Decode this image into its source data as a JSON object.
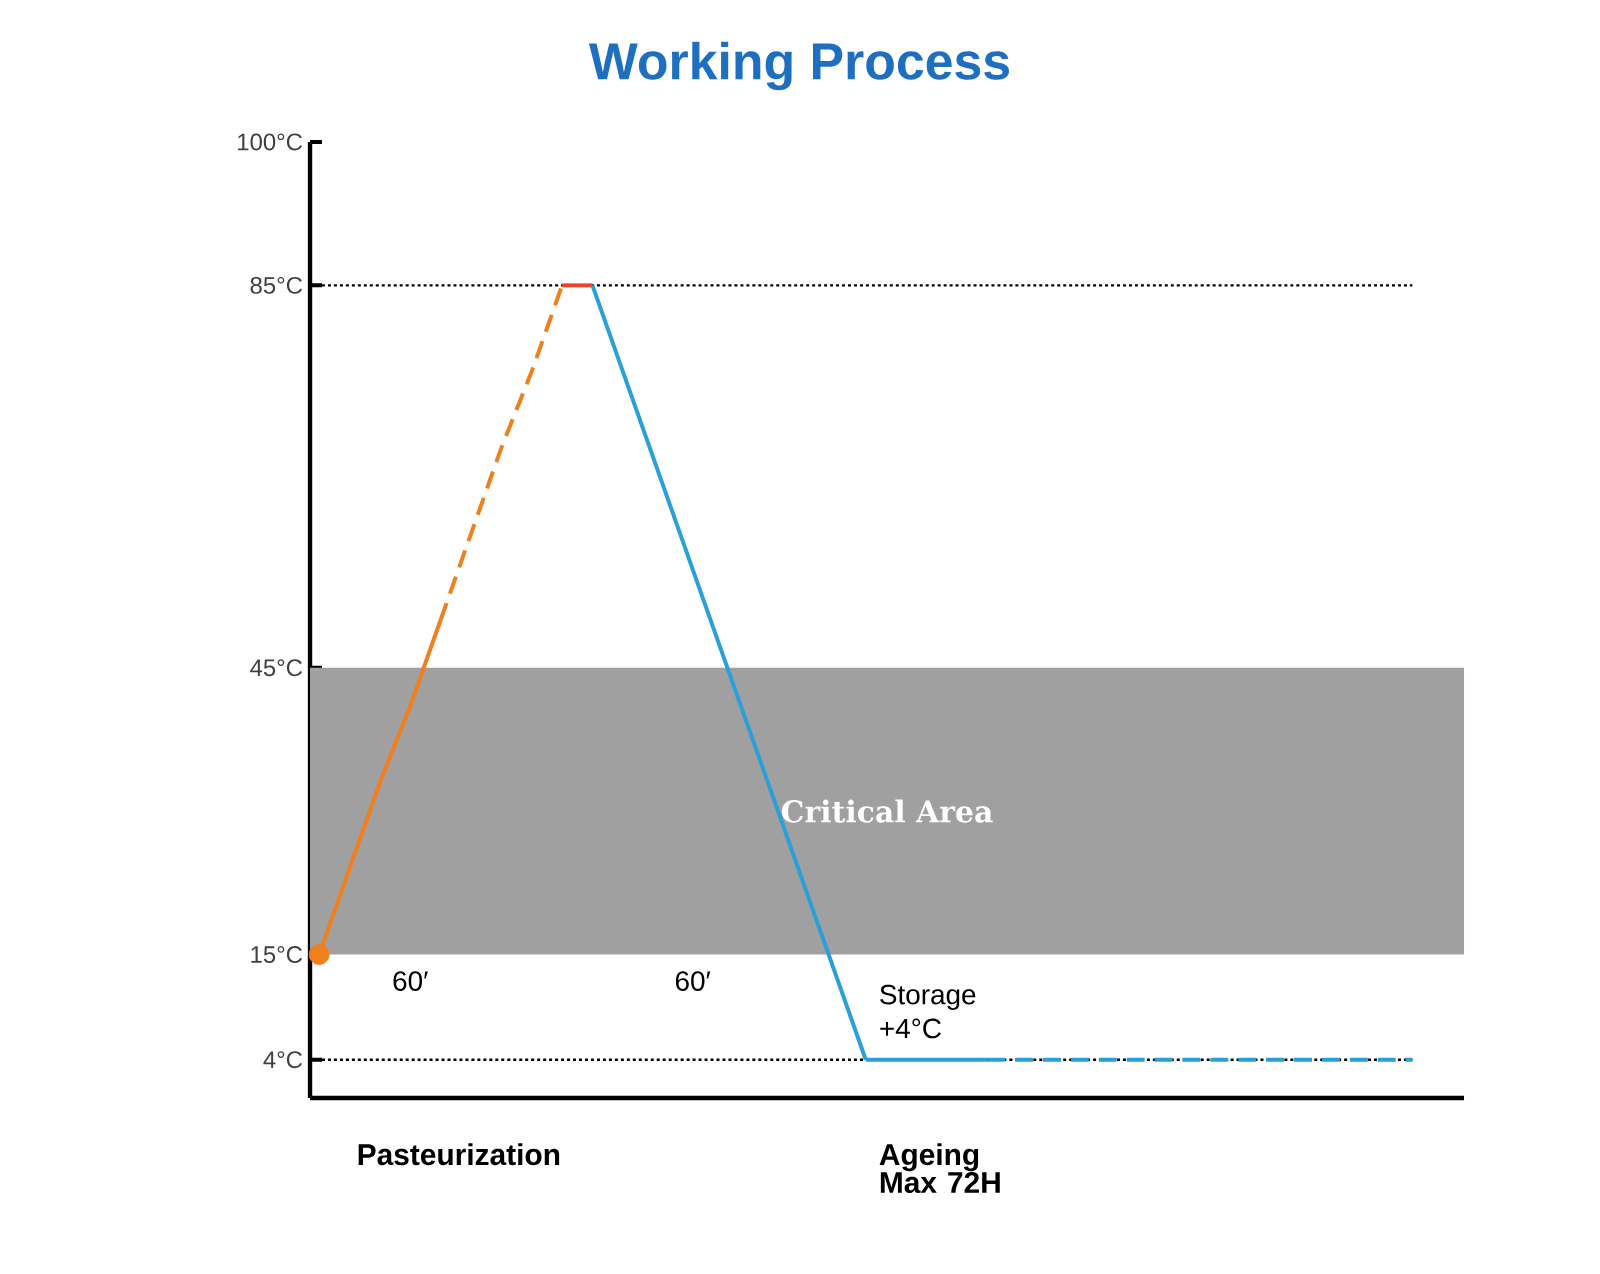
{
  "chart_data": {
    "type": "line",
    "title": "Working Process",
    "categories": [
      null,
      null,
      null,
      null,
      null,
      null,
      null,
      null,
      null,
      null,
      null,
      null,
      null,
      null,
      null,
      null,
      null,
      null,
      null,
      null,
      null,
      null,
      null,
      null,
      null,
      null,
      null,
      null,
      null,
      null,
      null,
      null,
      null,
      null,
      null,
      null,
      null
    ],
    "series": [
      {
        "color": "#f07f1e",
        "line_style": "solid",
        "values": [
          15,
          24,
          33,
          41,
          50,
          null,
          null,
          null,
          null,
          null,
          null,
          null,
          null,
          null,
          null,
          null,
          null,
          null,
          null,
          null,
          null,
          null,
          null,
          null,
          null,
          null,
          null,
          null,
          null,
          null,
          null,
          null,
          null,
          null,
          null,
          null,
          null
        ]
      },
      {
        "color": "#f07f1e",
        "line_style": "dashed",
        "values": [
          null,
          null,
          null,
          null,
          50,
          59,
          68,
          76,
          85,
          null,
          null,
          null,
          null,
          null,
          null,
          null,
          null,
          null,
          null,
          null,
          null,
          null,
          null,
          null,
          null,
          null,
          null,
          null,
          null,
          null,
          null,
          null,
          null,
          null,
          null,
          null,
          null
        ]
      },
      {
        "color": "#e8452a",
        "line_style": "solid",
        "values": [
          null,
          null,
          null,
          null,
          null,
          null,
          null,
          null,
          85,
          85,
          null,
          null,
          null,
          null,
          null,
          null,
          null,
          null,
          null,
          null,
          null,
          null,
          null,
          null,
          null,
          null,
          null,
          null,
          null,
          null,
          null,
          null,
          null,
          null,
          null,
          null,
          null
        ]
      },
      {
        "color": "#2aa0d8",
        "line_style": "solid",
        "values": [
          null,
          null,
          null,
          null,
          null,
          null,
          null,
          null,
          null,
          85,
          76,
          67,
          58,
          49,
          40,
          31,
          22,
          13,
          4,
          null,
          null,
          null,
          null,
          null,
          null,
          null,
          null,
          null,
          null,
          null,
          null,
          null,
          null,
          null,
          null,
          null,
          null
        ]
      },
      {
        "color": "#2aa0d8",
        "line_style": "solid",
        "values": [
          null,
          null,
          null,
          null,
          null,
          null,
          null,
          null,
          null,
          null,
          null,
          null,
          null,
          null,
          null,
          null,
          null,
          null,
          4,
          4,
          4,
          4,
          4,
          null,
          null,
          null,
          null,
          null,
          null,
          null,
          null,
          null,
          null,
          null,
          null,
          null,
          null
        ]
      },
      {
        "color": "#2aa0d8",
        "line_style": "dashed",
        "values": [
          null,
          null,
          null,
          null,
          null,
          null,
          null,
          null,
          null,
          null,
          null,
          null,
          null,
          null,
          null,
          null,
          null,
          null,
          null,
          null,
          null,
          null,
          4,
          4,
          4,
          4,
          4,
          4,
          4,
          4,
          4,
          4,
          4,
          4,
          4,
          4,
          4
        ]
      },
      {
        "type": "scatter",
        "color": "#f07f1e",
        "marker": "circle",
        "values": [
          15,
          null,
          null,
          null,
          null,
          null,
          null,
          null,
          null,
          null,
          null,
          null,
          null,
          null,
          null,
          null,
          null,
          null,
          null,
          null,
          null,
          null,
          null,
          null,
          null,
          null,
          null,
          null,
          null,
          null,
          null,
          null,
          null,
          null,
          null,
          null,
          null
        ]
      }
    ],
    "ylim": [
      0,
      100
    ],
    "yticks": [
      {
        "value": 4,
        "label": "4°C"
      },
      {
        "value": 15,
        "label": "15°C"
      },
      {
        "value": 45,
        "label": "45°C"
      },
      {
        "value": 85,
        "label": "85°C"
      },
      {
        "value": 100,
        "label": "100°C"
      }
    ],
    "tick_labels": "y",
    "grid": false,
    "ref_lines": [
      {
        "axis": "y",
        "value": 85,
        "line_style": "dotted",
        "color": "#000000"
      },
      {
        "axis": "y",
        "value": 4,
        "line_style": "dotted",
        "color": "#000000"
      }
    ],
    "bands": [
      {
        "axis": "y",
        "from": 15,
        "to": 45,
        "label": "Critical Area",
        "color": "#a0a0a0"
      }
    ],
    "annotations": [
      "Pasteurization",
      "Ageing Max 72H",
      "60′",
      "60′",
      "Storage +4°C"
    ]
  }
}
